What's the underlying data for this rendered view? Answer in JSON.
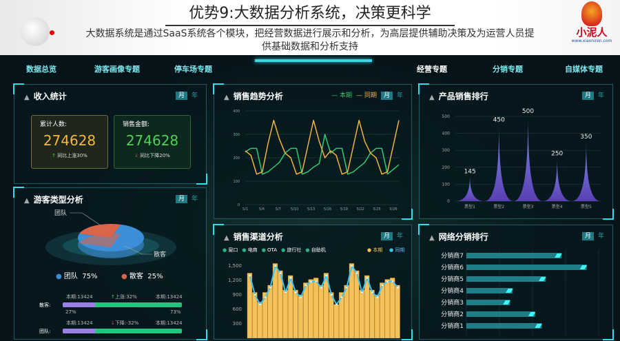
{
  "header": {
    "title": "优势9:大数据分析系统，决策更科学",
    "subtitle": "大数据系统是通过SaaS系统各个模块，把经营数据进行展示和分析，为高层提供辅助决策及为运营人员提供基础数据和分析支持",
    "logo_text": "小泥人",
    "logo_url": "www.xiaoniren.com"
  },
  "nav": {
    "items": [
      "数据总览",
      "游客画像专题",
      "停车场专题",
      "经营专题",
      "分销专题",
      "自媒体专题"
    ],
    "active": "经营专题"
  },
  "toggle": {
    "month": "月",
    "year": "年"
  },
  "income": {
    "title": "收入统计",
    "cards": [
      {
        "label": "累计人数:",
        "value": "274628",
        "change": "同比上涨30%",
        "dir": "up",
        "color": "#f5b942"
      },
      {
        "label": "销售金额:",
        "value": "274628",
        "change": "同比下降20%",
        "dir": "down",
        "color": "#4fd05a"
      }
    ]
  },
  "visitor": {
    "title": "游客类型分析",
    "slices": [
      {
        "name": "团队",
        "pct": 75,
        "color": "#3d8ed8"
      },
      {
        "name": "散客",
        "pct": 25,
        "color": "#d9664a"
      }
    ],
    "legend": [
      {
        "name": "团队",
        "pct": "75%"
      },
      {
        "name": "散客",
        "pct": "25%"
      }
    ],
    "rows": [
      {
        "label": "散客:",
        "left": "本期:13424",
        "mid": "上涨:32%",
        "dir": "up",
        "right": "本期:13424",
        "p1": 27,
        "p1_label": "27%",
        "p2_label": "73%"
      },
      {
        "label": "团队:",
        "left": "本期:13424",
        "mid": "下降:-32%",
        "dir": "down",
        "right": "本期:13424",
        "p1": 27
      }
    ]
  },
  "chart_data": [
    {
      "type": "line",
      "title": "销售趋势分析",
      "x": [
        "5/1",
        "5/2",
        "5/3",
        "5/4",
        "5/5",
        "5/6",
        "5/7",
        "5/8",
        "5/9",
        "5/10",
        "5/11",
        "5/12",
        "5/13",
        "5/14",
        "5/15",
        "5/16",
        "5/17",
        "5/18",
        "5/19",
        "5/20",
        "5/21",
        "5/22",
        "5/23",
        "5/24",
        "5/25",
        "5/26",
        "5/27",
        "5/28"
      ],
      "xticks": [
        "5/1",
        "5/4",
        "5/7",
        "5/10",
        "5/13",
        "5/16",
        "5/19",
        "5/22",
        "5/25",
        "5/26"
      ],
      "ylim": [
        0,
        400
      ],
      "yticks": [
        0,
        100,
        200,
        300,
        400
      ],
      "grid": true,
      "legend": "top-right",
      "series": [
        {
          "name": "本期",
          "color": "#2ecc71",
          "values": [
            225,
            240,
            240,
            130,
            140,
            160,
            180,
            220,
            240,
            240,
            130,
            140,
            160,
            175,
            300,
            220,
            240,
            240,
            130,
            140,
            160,
            180,
            220,
            240,
            240,
            130,
            150,
            170
          ]
        },
        {
          "name": "同期",
          "color": "#f0b540",
          "values": [
            230,
            210,
            130,
            140,
            260,
            360,
            280,
            220,
            200,
            130,
            140,
            250,
            360,
            270,
            200,
            230,
            210,
            130,
            140,
            250,
            360,
            270,
            220,
            200,
            130,
            140,
            250,
            360
          ]
        }
      ]
    },
    {
      "type": "bar",
      "title": "销售渠道分析",
      "channels": [
        "窗口",
        "电商",
        "OTA",
        "旅行社",
        "自助机"
      ],
      "ylim": [
        0,
        1600
      ],
      "yticks": [
        "300",
        "600",
        "900",
        "1,200",
        "1,500"
      ],
      "legend": "top-right",
      "series": [
        {
          "name": "本期",
          "color": "#f5c15a",
          "values": [
            1350,
            950,
            750,
            950,
            1100,
            1550,
            1400,
            1000,
            1300,
            1000,
            900,
            1150,
            1220,
            1250,
            1100,
            1350,
            950,
            700,
            950,
            1100,
            1550,
            1400,
            1000,
            1300,
            1000,
            900,
            1150,
            1220,
            1250,
            1100
          ]
        },
        {
          "name": "同期",
          "color": "#3fc3ef",
          "values": [
            1300,
            900,
            700,
            850,
            1050,
            1500,
            1350,
            950,
            1250,
            950,
            850,
            1100,
            1170,
            1180,
            1050,
            1300,
            900,
            700,
            850,
            1050,
            1500,
            1350,
            950,
            1250,
            950,
            850,
            1100,
            1170,
            1180,
            1050
          ]
        }
      ]
    },
    {
      "type": "area",
      "title": "产品销售排行",
      "categories": [
        "票型1",
        "票型2",
        "票型3",
        "票型4",
        "票型5"
      ],
      "values": [
        145,
        450,
        500,
        250,
        350
      ],
      "ylim": [
        0,
        500
      ],
      "yticks": [
        0,
        100,
        200,
        300,
        400,
        500
      ],
      "grid": true
    },
    {
      "type": "bar",
      "orientation": "horizontal",
      "title": "网络分销排行",
      "categories": [
        "分销商7",
        "分销商6",
        "分销商5",
        "分销商4",
        "分销商3",
        "分销商2",
        "分销商1"
      ],
      "values": [
        72,
        91,
        60,
        35,
        33,
        52,
        57
      ]
    }
  ]
}
